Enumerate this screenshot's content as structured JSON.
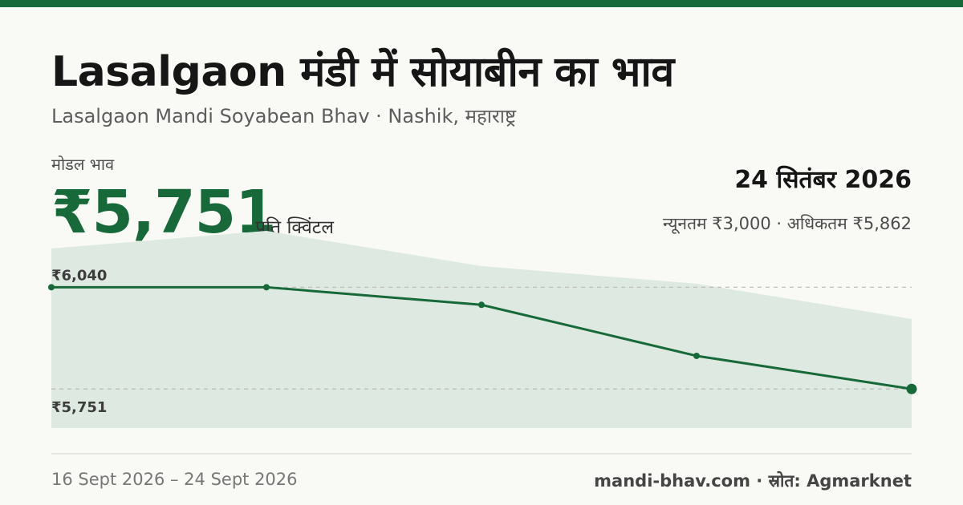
{
  "header": {
    "title": "Lasalgaon मंडी में सोयाबीन का भाव",
    "subtitle": "Lasalgaon Mandi Soyabean Bhav · Nashik, महाराष्ट्र"
  },
  "price": {
    "label": "मोडल भाव",
    "value": "₹5,751",
    "unit": "प्रति क्विंटल"
  },
  "date": {
    "current": "24 सितंबर 2026",
    "range_text": "न्यूनतम ₹3,000 · अधिकतम ₹5,862"
  },
  "chart_data": {
    "type": "line",
    "ylim": [
      5640,
      6150
    ],
    "points_modal": [
      6040,
      6040,
      5990,
      5845,
      5751
    ],
    "band_upper": [
      6150,
      6200,
      6100,
      6050,
      5950
    ],
    "band_lower": [
      5640,
      5640,
      5640,
      5640,
      5640
    ],
    "reference_lines": [
      {
        "value": 6040,
        "label": "₹6,040"
      },
      {
        "value": 5751,
        "label": "₹5,751"
      }
    ]
  },
  "footer": {
    "date_range": "16 Sept 2026 – 24 Sept 2026",
    "source": "mandi-bhav.com · स्रोत: Agmarknet"
  },
  "colors": {
    "accent": "#17693a",
    "band": "#deeae1",
    "reference": "#b9b9b9"
  }
}
